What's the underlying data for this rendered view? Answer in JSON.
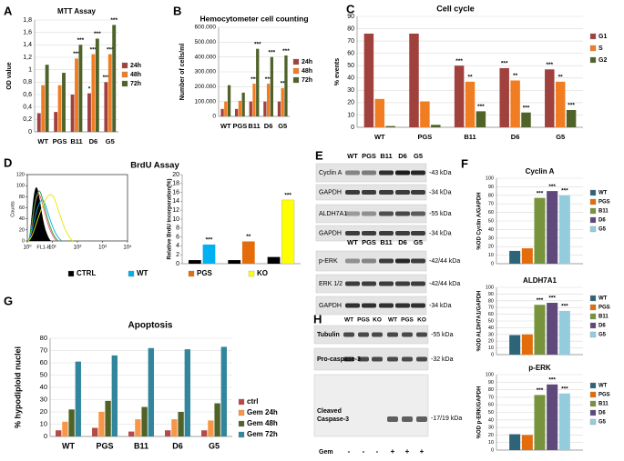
{
  "panel_labels": [
    "A",
    "B",
    "C",
    "D",
    "E",
    "F",
    "G",
    "H"
  ],
  "chart_data": [
    {
      "type": "bar",
      "title": "MTT Assay",
      "ylabel": "OD value",
      "categories": [
        "WT",
        "PGS",
        "B11",
        "D6",
        "G5"
      ],
      "series": [
        {
          "name": "24h",
          "color": "#a0413e",
          "values": [
            0.3,
            0.32,
            0.6,
            0.62,
            0.8
          ],
          "stars": [
            null,
            null,
            null,
            "*",
            "***"
          ]
        },
        {
          "name": "48h",
          "color": "#f07d22",
          "values": [
            0.75,
            0.75,
            1.18,
            1.25,
            1.25
          ],
          "stars": [
            null,
            null,
            "***",
            "***",
            "***"
          ]
        },
        {
          "name": "72h",
          "color": "#4f6228",
          "values": [
            1.08,
            0.95,
            1.4,
            1.5,
            1.72
          ],
          "stars": [
            null,
            null,
            "***",
            "***",
            "***"
          ]
        }
      ],
      "ylim": [
        0,
        1.8
      ],
      "yticks": [
        0,
        {
          "value": 0.2,
          "label": "0,2"
        },
        {
          "value": 0.4,
          "label": "0,4"
        },
        {
          "value": 0.6,
          "label": "0,6"
        },
        {
          "value": 0.8,
          "label": "0,8"
        },
        1,
        {
          "value": 1.2,
          "label": "1,2"
        },
        {
          "value": 1.4,
          "label": "1,4"
        },
        {
          "value": 1.6,
          "label": "1,6"
        },
        {
          "value": 1.8,
          "label": "1,8"
        }
      ],
      "grid": true,
      "legend": "right"
    },
    {
      "type": "bar",
      "title": "Hemocytometer cell counting",
      "ylabel": "Number of cells/ml",
      "categories": [
        "WT",
        "PGS",
        "B11",
        "D6",
        "G5"
      ],
      "series": [
        {
          "name": "24h",
          "color": "#a0413e",
          "values": [
            50000,
            50000,
            100000,
            100000,
            100000
          ]
        },
        {
          "name": "48h",
          "color": "#f07d22",
          "values": [
            100000,
            105000,
            220000,
            220000,
            190000
          ],
          "stars": [
            null,
            null,
            "***",
            "***",
            "**"
          ]
        },
        {
          "name": "72h",
          "color": "#4f6228",
          "values": [
            210000,
            160000,
            455000,
            400000,
            410000
          ],
          "stars": [
            null,
            null,
            "***",
            "***",
            "***"
          ]
        }
      ],
      "ylim": [
        0,
        600000
      ],
      "yticks": [
        0,
        {
          "value": 100000,
          "label": "100.000"
        },
        {
          "value": 200000,
          "label": "200.000"
        },
        {
          "value": 300000,
          "label": "300.000"
        },
        {
          "value": 400000,
          "label": "400.000"
        },
        {
          "value": 500000,
          "label": "500.000"
        },
        {
          "value": 600000,
          "label": "600.000"
        }
      ],
      "grid": true,
      "legend": "right"
    },
    {
      "type": "bar",
      "title": "Cell cycle",
      "ylabel": "% events",
      "categories": [
        "WT",
        "PGS",
        "B11",
        "D6",
        "G5"
      ],
      "series": [
        {
          "name": "G1",
          "color": "#a0413e",
          "values": [
            76,
            76,
            50,
            48,
            47
          ],
          "stars": [
            null,
            null,
            "***",
            "***",
            "***"
          ]
        },
        {
          "name": "S",
          "color": "#f07d22",
          "values": [
            23,
            21,
            37,
            38,
            37
          ],
          "stars": [
            null,
            null,
            "**",
            "**",
            "**"
          ]
        },
        {
          "name": "G2",
          "color": "#4f6228",
          "values": [
            1,
            2,
            13,
            12,
            14
          ],
          "stars": [
            null,
            null,
            "***",
            "***",
            "***"
          ]
        }
      ],
      "ylim": [
        0,
        90
      ],
      "yticks": [
        0,
        10,
        20,
        30,
        40,
        50,
        60,
        70,
        80,
        90
      ],
      "grid": true,
      "legend": "right"
    },
    {
      "type": "flow-histogram",
      "ylabel": "Counts",
      "xlabel": "FL1-H",
      "log_x": true,
      "xlim": [
        1,
        10000
      ],
      "xticks": [
        {
          "value": 1,
          "label": "10⁰"
        },
        {
          "value": 10,
          "label": "10¹"
        },
        {
          "value": 100,
          "label": "10²"
        },
        {
          "value": 1000,
          "label": "10³"
        },
        {
          "value": 10000,
          "label": "10⁴"
        }
      ],
      "ylim": [
        0,
        120
      ],
      "yticks": [
        0,
        20,
        40,
        60,
        80,
        100,
        120
      ]
    },
    {
      "type": "bar",
      "title": "BrdU Assay",
      "ylabel": "Relative BrdU incorporation(%)",
      "categories": [
        null,
        null,
        null
      ],
      "series": [
        {
          "name": "CTRL",
          "color": "#000000",
          "values": [
            0.8,
            0.8,
            1.5
          ]
        },
        {
          "name": "WT",
          "color": "#00b0f0",
          "values": [
            4.3,
            null,
            null
          ],
          "stars": [
            "***",
            null,
            null
          ]
        },
        {
          "name": "PGS",
          "color": "#e46c0a",
          "values": [
            null,
            5,
            null
          ],
          "stars": [
            null,
            "**",
            null
          ]
        },
        {
          "name": "KO",
          "color": "#ffff00",
          "values": [
            null,
            null,
            14.3
          ],
          "stars": [
            null,
            null,
            "***"
          ]
        }
      ],
      "ylim": [
        0,
        20
      ],
      "yticks": [
        0,
        2,
        4,
        6,
        8,
        10,
        12,
        14,
        16,
        18,
        20
      ],
      "grid": false,
      "legend": "bottom"
    },
    {
      "type": "bar",
      "title": "Cyclin A",
      "ylabel": "%OD Cyclin A/GAPDH",
      "categories": [
        null
      ],
      "series": [
        {
          "name": "WT",
          "color": "#2e6478",
          "values": [
            15
          ]
        },
        {
          "name": "PGS",
          "color": "#e46c0a",
          "values": [
            18
          ]
        },
        {
          "name": "B11",
          "color": "#77933c",
          "values": [
            77
          ],
          "stars": [
            "***"
          ]
        },
        {
          "name": "D6",
          "color": "#5f497a",
          "values": [
            85
          ],
          "stars": [
            "***"
          ]
        },
        {
          "name": "G5",
          "color": "#93cddd",
          "values": [
            80
          ],
          "stars": [
            "***"
          ]
        }
      ],
      "ylim": [
        0,
        100
      ],
      "yticks": [
        0,
        10,
        20,
        30,
        40,
        50,
        60,
        70,
        80,
        90,
        100
      ],
      "grid": true,
      "legend": "right"
    },
    {
      "type": "bar",
      "title": "ALDH7A1",
      "ylabel": "%OD ALDH7A1/GAPDH",
      "categories": [
        null
      ],
      "series": [
        {
          "name": "WT",
          "color": "#2e6478",
          "values": [
            29
          ]
        },
        {
          "name": "PGS",
          "color": "#e46c0a",
          "values": [
            30
          ]
        },
        {
          "name": "B11",
          "color": "#77933c",
          "values": [
            74
          ],
          "stars": [
            "***"
          ]
        },
        {
          "name": "D6",
          "color": "#5f497a",
          "values": [
            77
          ],
          "stars": [
            "***"
          ]
        },
        {
          "name": "G5",
          "color": "#93cddd",
          "values": [
            65
          ],
          "stars": [
            "***"
          ]
        }
      ],
      "ylim": [
        0,
        100
      ],
      "yticks": [
        0,
        10,
        20,
        30,
        40,
        50,
        60,
        70,
        80,
        90,
        100
      ],
      "grid": true,
      "legend": "right"
    },
    {
      "type": "bar",
      "title": "p-ERK",
      "ylabel": "%OD p-ERK/GAPDH",
      "categories": [
        null
      ],
      "series": [
        {
          "name": "WT",
          "color": "#2e6478",
          "values": [
            21
          ]
        },
        {
          "name": "PGS",
          "color": "#e46c0a",
          "values": [
            20
          ]
        },
        {
          "name": "B11",
          "color": "#77933c",
          "values": [
            73
          ],
          "stars": [
            "***"
          ]
        },
        {
          "name": "D6",
          "color": "#5f497a",
          "values": [
            87
          ],
          "stars": [
            "***"
          ]
        },
        {
          "name": "G5",
          "color": "#93cddd",
          "values": [
            75
          ],
          "stars": [
            "***"
          ]
        }
      ],
      "ylim": [
        0,
        100
      ],
      "yticks": [
        0,
        10,
        20,
        30,
        40,
        50,
        60,
        70,
        80,
        90,
        100
      ],
      "grid": true,
      "legend": "right"
    },
    {
      "type": "bar",
      "title": "Apoptosis",
      "ylabel": "% hypodiploid nuclei",
      "categories": [
        "WT",
        "PGS",
        "B11",
        "D6",
        "G5"
      ],
      "series": [
        {
          "name": "ctrl",
          "color": "#b54a47",
          "values": [
            5,
            7,
            4,
            5,
            5
          ]
        },
        {
          "name": "Gem 24h",
          "color": "#f79646",
          "values": [
            12,
            20,
            14,
            14,
            13
          ]
        },
        {
          "name": "Gem 48h",
          "color": "#4f6228",
          "values": [
            22,
            29,
            24,
            20,
            27
          ]
        },
        {
          "name": "Gem 72h",
          "color": "#31859c",
          "values": [
            61,
            66,
            72,
            71,
            73
          ]
        }
      ],
      "ylim": [
        0,
        80
      ],
      "yticks": [
        0,
        10,
        20,
        30,
        40,
        50,
        60,
        70,
        80
      ],
      "grid": true,
      "legend": "right"
    }
  ],
  "blot_E": {
    "lanes_top": [
      "WT",
      "PGS",
      "B11",
      "D6",
      "G5"
    ],
    "rows_top": [
      {
        "label": "Cyclin A",
        "size": "-43 kDa"
      },
      {
        "label": "GAPDH",
        "size": "-34 kDa"
      },
      {
        "label": "ALDH7A1",
        "size": "-55 kDa"
      },
      {
        "label": "GAPDH",
        "size": "-34 kDa"
      }
    ],
    "lanes_bottom": [
      "WT",
      "PGS",
      "B11",
      "D6",
      "G5"
    ],
    "rows_bottom": [
      {
        "label": "p-ERK",
        "size": "-42/44 kDa"
      },
      {
        "label": "ERK 1/2",
        "size": "-42/44 kDa"
      },
      {
        "label": "GAPDH",
        "size": "-34 kDa"
      }
    ]
  },
  "blot_H": {
    "lanes": [
      "WT",
      "PGS",
      "KO",
      "WT",
      "PGS",
      "KO"
    ],
    "rows": [
      {
        "label": [
          "Tubulin"
        ],
        "size": "-55 kDa"
      },
      {
        "label": [
          "Pro-caspase-3"
        ],
        "size": "-32 kDa"
      },
      {
        "label": [
          "Cleaved",
          "Caspase-3"
        ],
        "size": "-17/19 kDa"
      }
    ],
    "treatment": {
      "label": "Gem",
      "lanes": [
        "-",
        "-",
        "-",
        "+",
        "+",
        "+"
      ]
    }
  }
}
